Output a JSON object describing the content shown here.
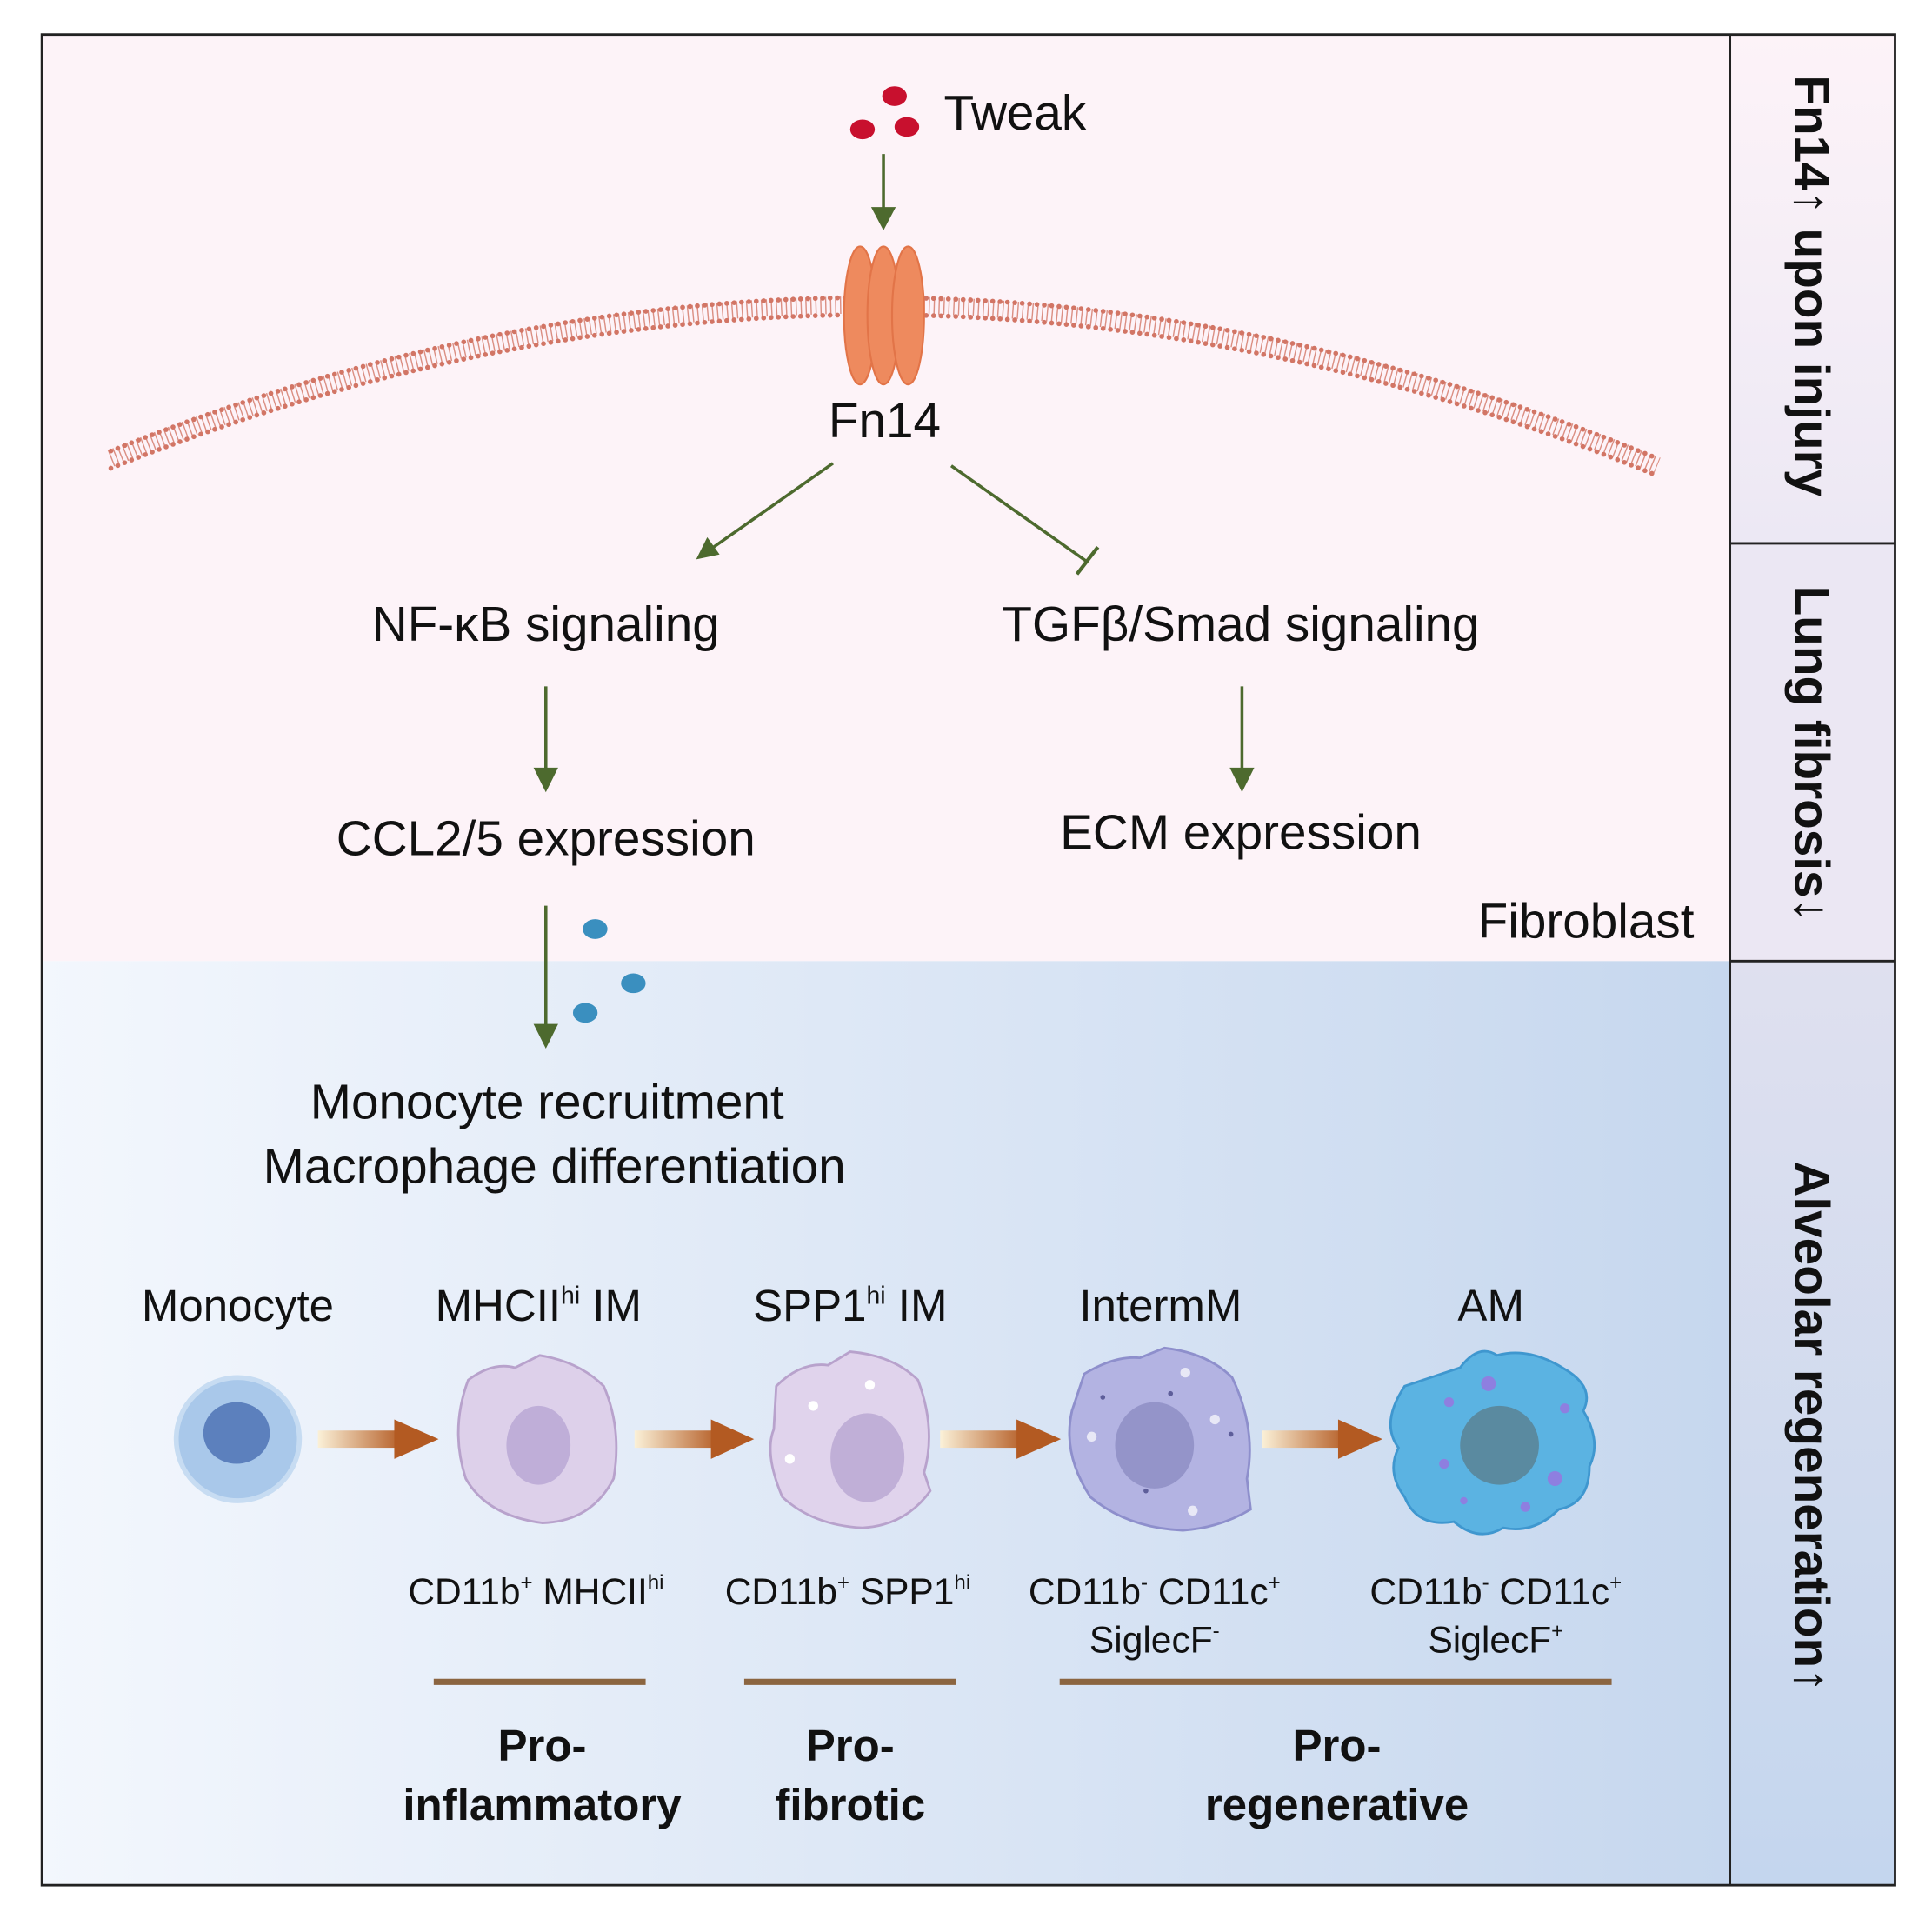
{
  "colors": {
    "top_panel": "#fdf3f8",
    "bottom_panel_left": "#f3f7fd",
    "bottom_panel_right": "#c6d7ee",
    "signal_arrow": "#4d6a2e",
    "tweak_ligand": "#c8102e",
    "ccl_ligand": "#3a8fbf",
    "membrane": "#d27565",
    "receptor": "#ee8a5e",
    "group_line": "#8b6540",
    "transition_arrow": "#b8652a"
  },
  "top": {
    "ligand": "Tweak",
    "receptor": "Fn14",
    "left_pathway": "NF-κB signaling",
    "right_pathway": "TGFβ/Smad signaling",
    "left_output": "CCL2/5 expression",
    "right_output": "ECM expression",
    "cell_type": "Fibroblast"
  },
  "bottom": {
    "line1": "Monocyte recruitment",
    "line2": "Macrophage differentiation",
    "cells": [
      {
        "name": "Monocyte",
        "sup": "",
        "suffix": ""
      },
      {
        "name": "MHCII",
        "sup": "hi",
        "suffix": " IM"
      },
      {
        "name": "SPP1",
        "sup": "hi",
        "suffix": " IM"
      },
      {
        "name": "IntermM",
        "sup": "",
        "suffix": ""
      },
      {
        "name": "AM",
        "sup": "",
        "suffix": ""
      }
    ],
    "markers": [
      {
        "a": "CD11b",
        "as": "+",
        "b": " MHCII",
        "bs": "hi",
        "line2": "",
        "l2s": ""
      },
      {
        "a": "CD11b",
        "as": "+",
        "b": " SPP1",
        "bs": "hi",
        "line2": "",
        "l2s": ""
      },
      {
        "a": "CD11b",
        "as": "-",
        "b": " CD11c",
        "bs": "+",
        "line2": "SiglecF",
        "l2s": "-"
      },
      {
        "a": "CD11b",
        "as": "-",
        "b": " CD11c",
        "bs": "+",
        "line2": "SiglecF",
        "l2s": "+"
      }
    ],
    "groups": [
      {
        "l1": "Pro-",
        "l2": "inflammatory"
      },
      {
        "l1": "Pro-",
        "l2": "fibrotic"
      },
      {
        "l1": "Pro-",
        "l2": "regenerative"
      }
    ]
  },
  "side": {
    "s1": "Fn14↑ upon injury",
    "s2": "Lung fibrosis↓",
    "s3": "Alveolar regeneration↑"
  }
}
